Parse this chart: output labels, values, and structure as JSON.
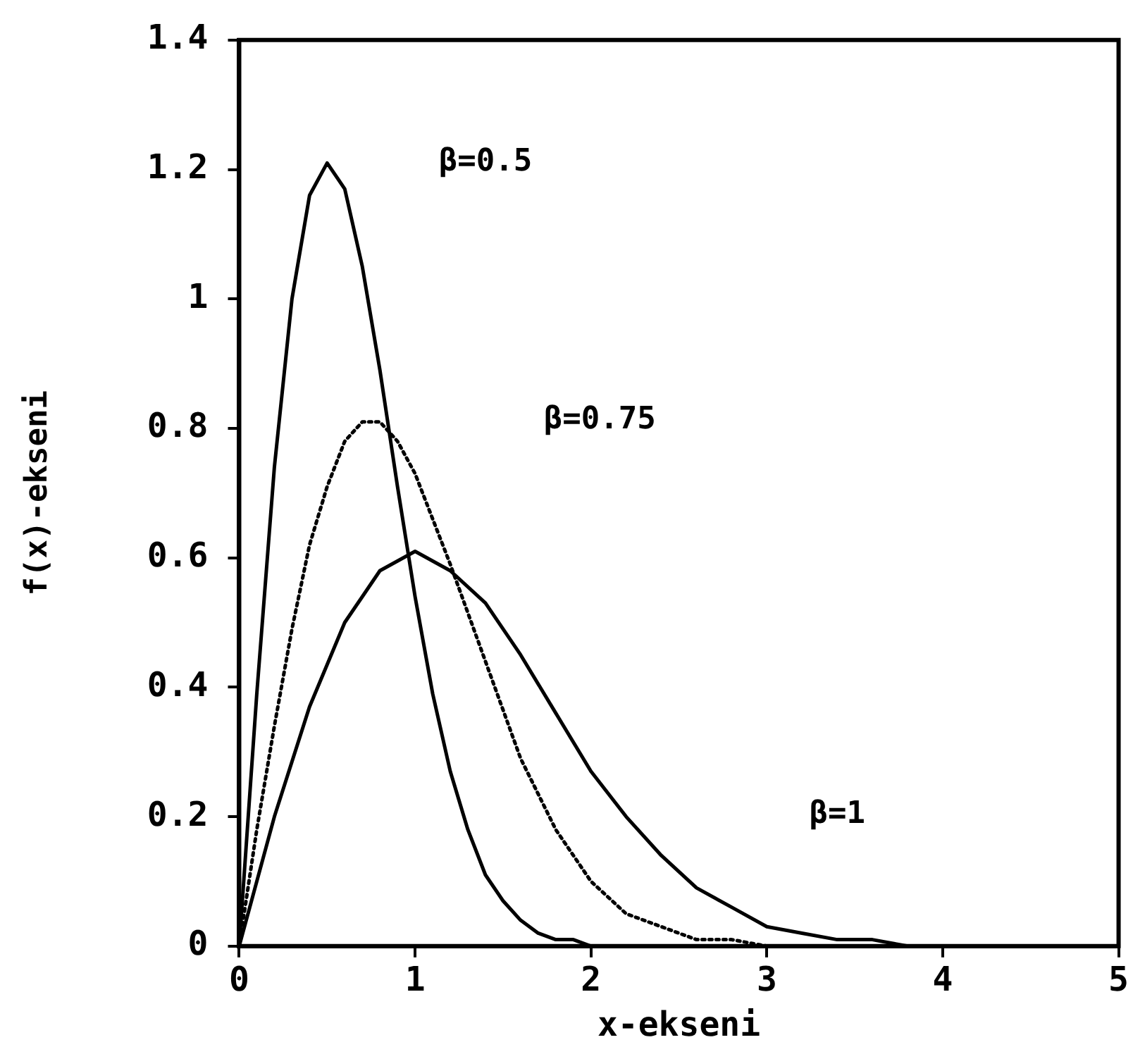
{
  "chart_data": {
    "type": "line",
    "xlabel": "x-ekseni",
    "ylabel": "f(x)-ekseni",
    "xlim": [
      0,
      5
    ],
    "xticks": [
      0,
      1,
      2,
      3,
      4,
      5
    ],
    "ylim": [
      0,
      1.4
    ],
    "yticks": [
      0,
      0.2,
      0.4,
      0.6,
      0.8,
      1,
      1.2,
      1.4
    ],
    "grid": false,
    "legend": false,
    "marker": "none",
    "series": [
      {
        "color": "#000000",
        "line_style": "solid",
        "x": [
          0,
          0.1,
          0.2,
          0.3,
          0.4,
          0.5,
          0.6,
          0.7,
          0.8,
          0.9,
          1.0,
          1.1,
          1.2,
          1.3,
          1.4,
          1.5,
          1.6,
          1.7,
          1.8,
          1.9,
          2.0
        ],
        "values": [
          0,
          0.39,
          0.74,
          1.0,
          1.16,
          1.21,
          1.17,
          1.05,
          0.89,
          0.71,
          0.54,
          0.39,
          0.27,
          0.18,
          0.11,
          0.07,
          0.04,
          0.02,
          0.01,
          0.01,
          0
        ]
      },
      {
        "color": "#000000",
        "line_style": "dotted",
        "x": [
          0,
          0.1,
          0.2,
          0.3,
          0.4,
          0.5,
          0.6,
          0.7,
          0.8,
          0.9,
          1.0,
          1.2,
          1.4,
          1.6,
          1.8,
          2.0,
          2.2,
          2.4,
          2.6,
          2.8,
          3.0
        ],
        "values": [
          0,
          0.18,
          0.34,
          0.49,
          0.62,
          0.71,
          0.78,
          0.81,
          0.81,
          0.78,
          0.73,
          0.59,
          0.44,
          0.29,
          0.18,
          0.1,
          0.05,
          0.03,
          0.01,
          0.01,
          0
        ]
      },
      {
        "color": "#000000",
        "line_style": "solid",
        "x": [
          0,
          0.2,
          0.4,
          0.6,
          0.8,
          1.0,
          1.2,
          1.4,
          1.6,
          1.8,
          2.0,
          2.2,
          2.4,
          2.6,
          2.8,
          3.0,
          3.2,
          3.4,
          3.6,
          3.8,
          4.0
        ],
        "values": [
          0,
          0.2,
          0.37,
          0.5,
          0.58,
          0.61,
          0.58,
          0.53,
          0.45,
          0.36,
          0.27,
          0.2,
          0.14,
          0.09,
          0.06,
          0.03,
          0.02,
          0.01,
          0.01,
          0,
          0
        ]
      }
    ],
    "annotations": [
      "β=0.5",
      "β=0.75",
      "β=1"
    ]
  }
}
